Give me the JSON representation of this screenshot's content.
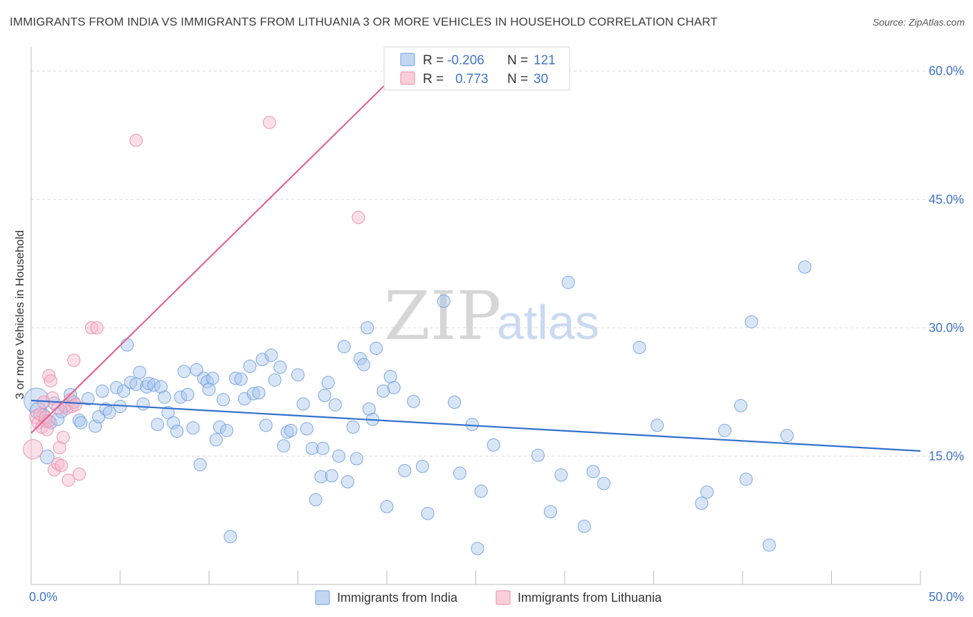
{
  "title": "IMMIGRANTS FROM INDIA VS IMMIGRANTS FROM LITHUANIA 3 OR MORE VEHICLES IN HOUSEHOLD CORRELATION CHART",
  "source": "Source: ZipAtlas.com",
  "watermark": {
    "zip": "ZIP",
    "atlas": "atlas"
  },
  "colors": {
    "india_fill": "#a9c6ee",
    "india_stroke": "#6f9fde",
    "india_line": "#2f6fcf",
    "lith_fill": "#f6b9cb",
    "lith_stroke": "#ea8aa8",
    "lith_line": "#e3638e",
    "grid": "#d9d9d9",
    "axis_text": "#3f74c9"
  },
  "legend": {
    "r_label": "R =",
    "n_label": "N =",
    "india": {
      "r": "-0.206",
      "n": "121"
    },
    "lithuania": {
      "r": "0.773",
      "n": "30"
    }
  },
  "chart_data": {
    "type": "scatter",
    "xlabel": "",
    "ylabel": "3 or more Vehicles in Household",
    "xlim": [
      0,
      50
    ],
    "ylim": [
      0,
      62
    ],
    "x_tick_labels": [
      "0.0%",
      "50.0%"
    ],
    "y_ticks": [
      15,
      30,
      45,
      60
    ],
    "y_tick_labels": [
      "15.0%",
      "30.0%",
      "45.0%",
      "60.0%"
    ],
    "grid": true,
    "series": [
      {
        "name": "Immigrants from India",
        "r": -0.206,
        "n": 121,
        "trend": {
          "x": [
            0,
            50
          ],
          "y": [
            21.5,
            15.6
          ]
        },
        "points": [
          [
            0.3,
            21.5,
            18
          ],
          [
            0.4,
            20.3,
            12
          ],
          [
            0.7,
            19.7,
            10
          ],
          [
            0.8,
            19.1,
            9
          ],
          [
            0.9,
            14.9,
            10
          ],
          [
            1.1,
            18.9,
            9
          ],
          [
            1.3,
            21.2,
            9
          ],
          [
            1.5,
            19.3,
            9
          ],
          [
            1.7,
            20.2,
            9
          ],
          [
            1.9,
            20.8,
            9
          ],
          [
            2.2,
            22.2,
            9
          ],
          [
            2.4,
            21.3,
            9
          ],
          [
            2.7,
            19.2,
            9
          ],
          [
            2.8,
            18.9,
            9
          ],
          [
            3.2,
            21.7,
            9
          ],
          [
            3.6,
            18.5,
            9
          ],
          [
            3.8,
            19.6,
            9
          ],
          [
            4.0,
            22.6,
            9
          ],
          [
            4.2,
            20.5,
            9
          ],
          [
            4.4,
            20.1,
            9
          ],
          [
            4.8,
            23.0,
            9
          ],
          [
            5.0,
            20.8,
            9
          ],
          [
            5.2,
            22.6,
            9
          ],
          [
            5.4,
            28.0,
            9
          ],
          [
            5.6,
            23.6,
            9
          ],
          [
            5.9,
            23.4,
            9
          ],
          [
            6.1,
            24.8,
            9
          ],
          [
            6.3,
            21.1,
            9
          ],
          [
            6.5,
            23.1,
            9
          ],
          [
            6.6,
            23.5,
            9
          ],
          [
            6.9,
            23.3,
            9
          ],
          [
            7.1,
            18.7,
            9
          ],
          [
            7.3,
            23.1,
            9
          ],
          [
            7.5,
            21.9,
            9
          ],
          [
            7.7,
            20.1,
            9
          ],
          [
            8.0,
            18.9,
            9
          ],
          [
            8.2,
            17.9,
            9
          ],
          [
            8.4,
            21.9,
            9
          ],
          [
            8.6,
            24.9,
            9
          ],
          [
            8.8,
            22.2,
            9
          ],
          [
            9.1,
            18.3,
            9
          ],
          [
            9.3,
            25.1,
            9
          ],
          [
            9.5,
            14.0,
            9
          ],
          [
            9.7,
            24.1,
            9
          ],
          [
            9.9,
            23.7,
            9
          ],
          [
            10.2,
            24.1,
            9
          ],
          [
            10.4,
            16.9,
            9
          ],
          [
            10.6,
            18.4,
            9
          ],
          [
            10.8,
            21.6,
            9
          ],
          [
            11.0,
            18.0,
            9
          ],
          [
            11.2,
            5.6,
            9
          ],
          [
            11.5,
            24.1,
            9
          ],
          [
            11.8,
            24.0,
            9
          ],
          [
            12.0,
            21.7,
            9
          ],
          [
            12.3,
            25.5,
            9
          ],
          [
            12.5,
            22.3,
            9
          ],
          [
            12.8,
            22.4,
            9
          ],
          [
            13.0,
            26.3,
            9
          ],
          [
            13.2,
            18.6,
            9
          ],
          [
            13.5,
            26.8,
            9
          ],
          [
            13.7,
            23.9,
            9
          ],
          [
            14.0,
            25.4,
            9
          ],
          [
            14.2,
            16.2,
            9
          ],
          [
            14.4,
            17.8,
            9
          ],
          [
            14.6,
            18.0,
            9
          ],
          [
            15.0,
            24.5,
            9
          ],
          [
            15.3,
            21.1,
            9
          ],
          [
            15.5,
            18.2,
            9
          ],
          [
            15.8,
            15.9,
            9
          ],
          [
            16.0,
            9.9,
            9
          ],
          [
            16.3,
            12.6,
            9
          ],
          [
            16.4,
            15.9,
            9
          ],
          [
            16.7,
            23.6,
            9
          ],
          [
            16.9,
            12.7,
            9
          ],
          [
            17.1,
            21.0,
            9
          ],
          [
            17.3,
            15.0,
            9
          ],
          [
            17.6,
            27.8,
            9
          ],
          [
            17.8,
            12.0,
            9
          ],
          [
            18.1,
            18.4,
            9
          ],
          [
            18.3,
            14.7,
            9
          ],
          [
            18.5,
            26.4,
            9
          ],
          [
            18.7,
            25.7,
            9
          ],
          [
            18.9,
            30.0,
            9
          ],
          [
            19.0,
            20.5,
            9
          ],
          [
            19.2,
            19.3,
            9
          ],
          [
            19.4,
            27.6,
            9
          ],
          [
            20.0,
            9.1,
            9
          ],
          [
            20.2,
            24.3,
            9
          ],
          [
            20.4,
            23.0,
            9
          ],
          [
            19.8,
            22.6,
            9
          ],
          [
            21.0,
            13.3,
            9
          ],
          [
            21.5,
            21.4,
            9
          ],
          [
            22.0,
            13.8,
            9
          ],
          [
            22.3,
            8.3,
            9
          ],
          [
            23.2,
            33.1,
            9
          ],
          [
            23.8,
            21.3,
            9
          ],
          [
            24.1,
            13.0,
            9
          ],
          [
            24.8,
            18.7,
            9
          ],
          [
            25.1,
            4.2,
            9
          ],
          [
            25.3,
            10.9,
            9
          ],
          [
            28.5,
            15.1,
            9
          ],
          [
            29.2,
            8.5,
            9
          ],
          [
            29.8,
            12.8,
            9
          ],
          [
            30.2,
            35.3,
            9
          ],
          [
            31.1,
            6.8,
            9
          ],
          [
            31.6,
            13.2,
            9
          ],
          [
            32.2,
            11.8,
            9
          ],
          [
            34.2,
            27.7,
            9
          ],
          [
            35.2,
            18.6,
            9
          ],
          [
            37.7,
            9.5,
            9
          ],
          [
            38.0,
            10.8,
            9
          ],
          [
            39.0,
            18.0,
            9
          ],
          [
            39.9,
            20.9,
            9
          ],
          [
            40.5,
            30.7,
            9
          ],
          [
            41.5,
            4.6,
            9
          ],
          [
            43.5,
            37.1,
            9
          ],
          [
            42.5,
            17.4,
            9
          ],
          [
            40.2,
            12.3,
            9
          ],
          [
            16.5,
            22.1,
            9
          ],
          [
            10.0,
            22.8,
            9
          ],
          [
            26.0,
            16.3,
            9
          ]
        ]
      },
      {
        "name": "Immigrants from Lithuania",
        "r": 0.773,
        "n": 30,
        "trend": {
          "x": [
            0,
            20.2
          ],
          "y": [
            17.7,
            59.0
          ]
        },
        "points": [
          [
            0.1,
            15.8,
            14
          ],
          [
            0.3,
            19.6,
            10
          ],
          [
            0.4,
            18.9,
            9
          ],
          [
            0.5,
            19.9,
            9
          ],
          [
            0.6,
            18.4,
            9
          ],
          [
            0.7,
            21.3,
            9
          ],
          [
            0.8,
            19.5,
            9
          ],
          [
            0.9,
            18.1,
            9
          ],
          [
            1.0,
            19.1,
            9
          ],
          [
            1.0,
            24.4,
            9
          ],
          [
            1.1,
            23.8,
            9
          ],
          [
            1.2,
            21.8,
            9
          ],
          [
            1.3,
            13.4,
            9
          ],
          [
            1.5,
            14.1,
            9
          ],
          [
            1.6,
            16.0,
            9
          ],
          [
            1.7,
            13.9,
            9
          ],
          [
            1.8,
            17.2,
            9
          ],
          [
            2.0,
            20.6,
            9
          ],
          [
            2.1,
            12.2,
            9
          ],
          [
            2.2,
            21.6,
            9
          ],
          [
            2.3,
            20.8,
            9
          ],
          [
            2.4,
            26.2,
            9
          ],
          [
            2.7,
            12.9,
            9
          ],
          [
            3.4,
            30.0,
            9
          ],
          [
            3.7,
            30.0,
            9
          ],
          [
            5.9,
            51.9,
            9
          ],
          [
            13.4,
            54.0,
            9
          ],
          [
            18.4,
            42.9,
            9
          ],
          [
            1.5,
            20.6,
            9
          ],
          [
            2.5,
            21.0,
            9
          ]
        ]
      }
    ]
  },
  "bottom_legend": [
    "Immigrants from India",
    "Immigrants from Lithuania"
  ]
}
